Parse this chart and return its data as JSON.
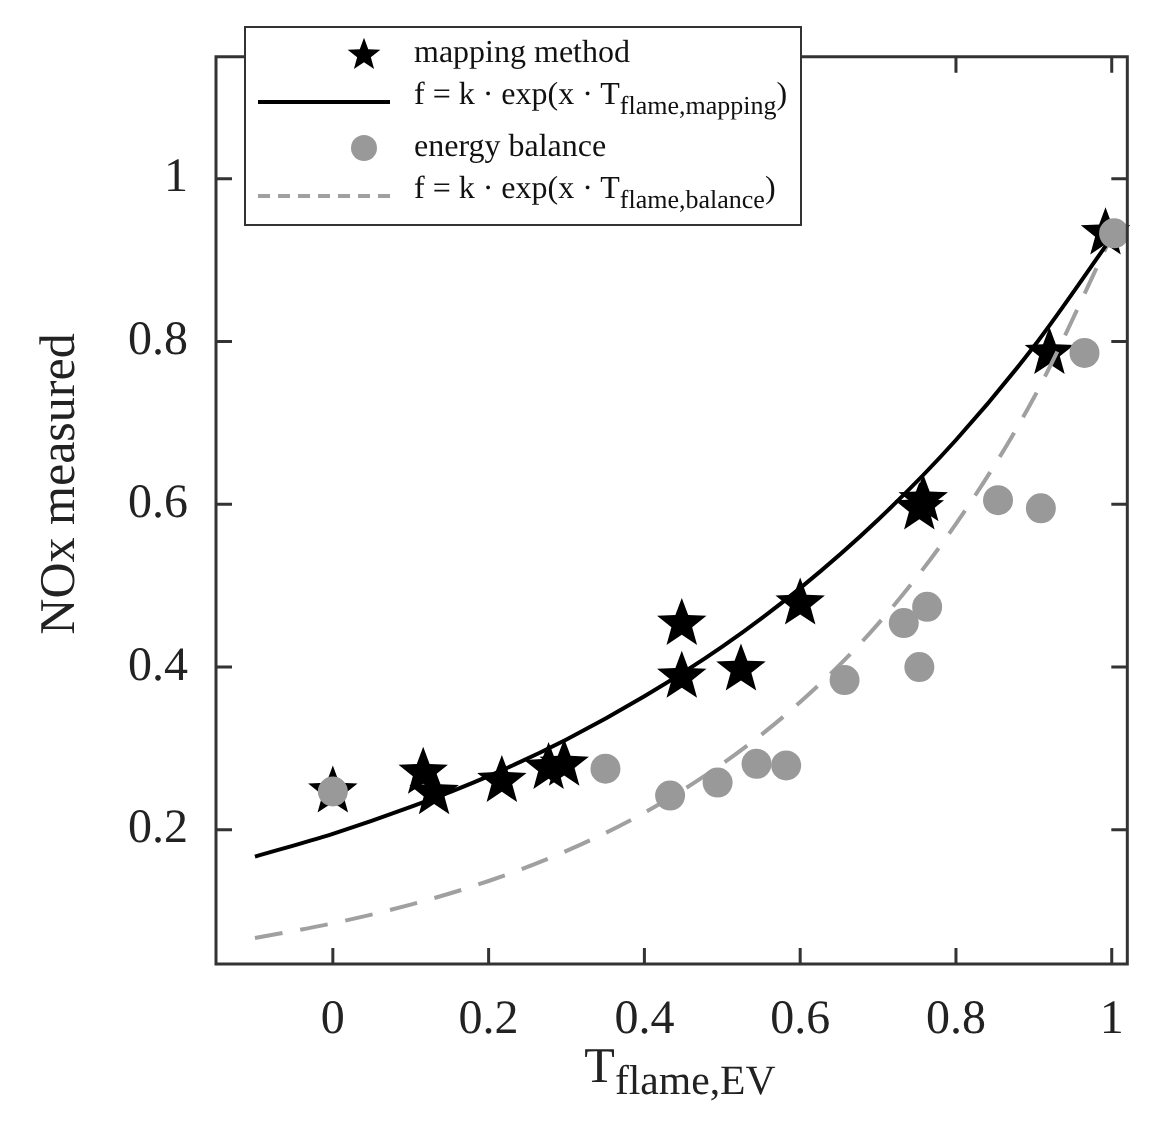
{
  "chart_data": {
    "type": "scatter",
    "xlabel": "T$_{flame,EV}$",
    "ylabel": "NOx measured",
    "xlim": [
      -0.15,
      1.02
    ],
    "ylim": [
      0.035,
      1.15
    ],
    "xticks": [
      0,
      0.2,
      0.4,
      0.6,
      0.8,
      1
    ],
    "yticks": [
      0.2,
      0.4,
      0.6,
      0.8,
      1
    ],
    "grid": false,
    "legend": "top left",
    "series": [
      {
        "name": "mapping method",
        "type": "scatter",
        "marker": "star",
        "color": "#000000",
        "x": [
          0,
          0.116,
          0.13,
          0.217,
          0.277,
          0.297,
          0.448,
          0.448,
          0.524,
          0.6,
          0.753,
          0.758,
          0.92,
          0.992
        ],
        "values": [
          0.247,
          0.27,
          0.245,
          0.26,
          0.276,
          0.28,
          0.453,
          0.388,
          0.397,
          0.478,
          0.595,
          0.605,
          0.786,
          0.933
        ]
      },
      {
        "name": "f = k · exp(x · T$_{flame,mapping}$)",
        "type": "line",
        "marker": "none",
        "line_style": "solid",
        "color": "#000000",
        "x": [
          -0.1,
          0,
          0.1,
          0.2,
          0.3,
          0.4,
          0.5,
          0.6,
          0.7,
          0.8,
          0.9,
          1
        ],
        "values": [
          0.167,
          0.195,
          0.228,
          0.266,
          0.311,
          0.364,
          0.425,
          0.497,
          0.581,
          0.679,
          0.794,
          0.928
        ]
      },
      {
        "name": "energy balance",
        "type": "scatter",
        "marker": "circle",
        "color": "#999999",
        "x": [
          0,
          0.35,
          0.433,
          0.494,
          0.544,
          0.582,
          0.657,
          0.733,
          0.753,
          0.763,
          0.854,
          0.909,
          0.965,
          1.003
        ],
        "values": [
          0.247,
          0.275,
          0.242,
          0.258,
          0.281,
          0.279,
          0.384,
          0.454,
          0.4,
          0.474,
          0.605,
          0.595,
          0.786,
          0.933
        ]
      },
      {
        "name": "f = k · exp(x · T$_{flame,balance}$)",
        "type": "line",
        "marker": "none",
        "line_style": "dashed",
        "color": "#a0a0a0",
        "x": [
          -0.1,
          0,
          0.1,
          0.2,
          0.3,
          0.4,
          0.5,
          0.6,
          0.7,
          0.8,
          0.9,
          1
        ],
        "values": [
          0.067,
          0.085,
          0.108,
          0.137,
          0.174,
          0.221,
          0.281,
          0.357,
          0.453,
          0.576,
          0.731,
          0.93
        ]
      }
    ]
  }
}
